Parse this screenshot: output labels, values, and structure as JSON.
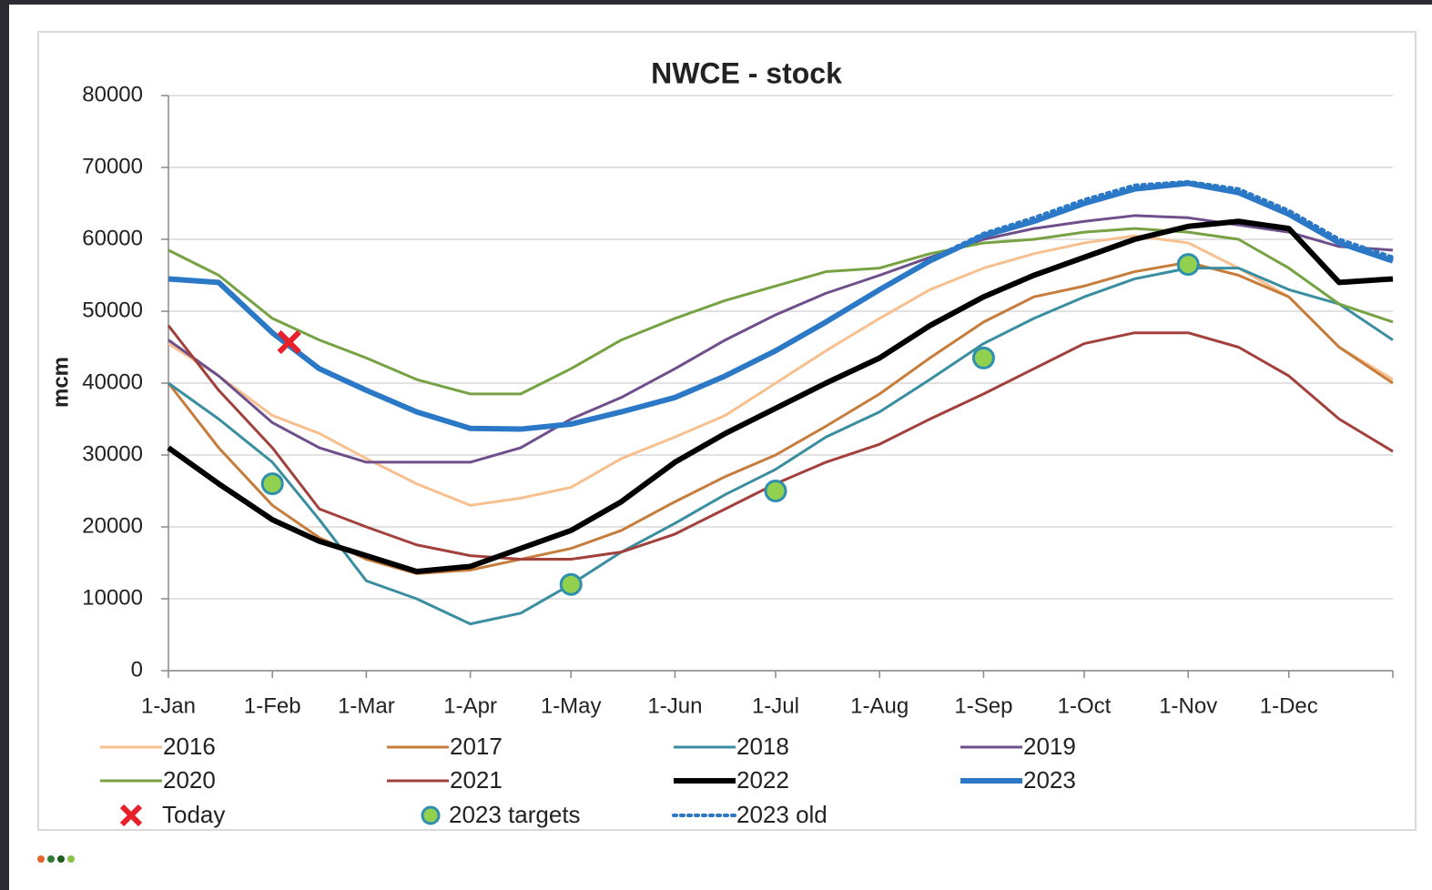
{
  "chart_data": {
    "type": "line",
    "title": "NWCE - stock",
    "y_label": "mcm",
    "x": [
      0,
      15,
      31,
      45,
      59,
      74,
      90,
      105,
      120,
      135,
      151,
      166,
      181,
      196,
      212,
      227,
      243,
      258,
      273,
      288,
      304,
      319,
      334,
      349,
      365
    ],
    "xlim": [
      0,
      365
    ],
    "xticks": [
      {
        "value": 0,
        "label": "1-Jan"
      },
      {
        "value": 31,
        "label": "1-Feb"
      },
      {
        "value": 59,
        "label": "1-Mar"
      },
      {
        "value": 90,
        "label": "1-Apr"
      },
      {
        "value": 120,
        "label": "1-May"
      },
      {
        "value": 151,
        "label": "1-Jun"
      },
      {
        "value": 181,
        "label": "1-Jul"
      },
      {
        "value": 212,
        "label": "1-Aug"
      },
      {
        "value": 243,
        "label": "1-Sep"
      },
      {
        "value": 273,
        "label": "1-Oct"
      },
      {
        "value": 304,
        "label": "1-Nov"
      },
      {
        "value": 334,
        "label": "1-Dec"
      }
    ],
    "ylim": [
      0,
      80000
    ],
    "yticks": [
      0,
      10000,
      20000,
      30000,
      40000,
      50000,
      60000,
      70000,
      80000
    ],
    "grid": true,
    "legend": "bottom",
    "series": [
      {
        "name": "2016",
        "color": "#f7c08e",
        "style": "line",
        "width": 3,
        "values": [
          45500,
          41000,
          35500,
          33000,
          29500,
          26000,
          23000,
          24000,
          25500,
          29500,
          32500,
          35500,
          40000,
          44500,
          49000,
          53000,
          56000,
          58000,
          59500,
          60500,
          59500,
          56000,
          52000,
          45000,
          40500
        ]
      },
      {
        "name": "2017",
        "color": "#c67c3a",
        "style": "line",
        "width": 3,
        "values": [
          40000,
          31000,
          23000,
          18500,
          15500,
          13500,
          14000,
          15500,
          17000,
          19500,
          23500,
          27000,
          30000,
          34000,
          38500,
          43500,
          48500,
          52000,
          53500,
          55500,
          56800,
          55000,
          52000,
          45000,
          40000
        ]
      },
      {
        "name": "2018",
        "color": "#3a8ea0",
        "style": "line",
        "width": 3,
        "values": [
          40000,
          35000,
          29000,
          21000,
          12500,
          10000,
          6500,
          8000,
          12000,
          16500,
          20500,
          24500,
          28000,
          32500,
          36000,
          40500,
          45500,
          49000,
          52000,
          54500,
          56000,
          56000,
          53000,
          51000,
          46000
        ]
      },
      {
        "name": "2019",
        "color": "#6e4f8c",
        "style": "line",
        "width": 3,
        "values": [
          46000,
          41000,
          34500,
          31000,
          29000,
          29000,
          29000,
          31000,
          35000,
          38000,
          42000,
          46000,
          49500,
          52500,
          55000,
          57500,
          60000,
          61500,
          62500,
          63300,
          63000,
          62000,
          61000,
          59000,
          58500
        ]
      },
      {
        "name": "2020",
        "color": "#76a243",
        "style": "line",
        "width": 3,
        "values": [
          58500,
          55000,
          49000,
          46000,
          43500,
          40500,
          38500,
          38500,
          42000,
          46000,
          49000,
          51500,
          53500,
          55500,
          56000,
          58000,
          59500,
          60000,
          61000,
          61500,
          61000,
          60000,
          56000,
          51000,
          48500
        ]
      },
      {
        "name": "2021",
        "color": "#a2403b",
        "style": "line",
        "width": 3,
        "values": [
          48000,
          39000,
          31000,
          22500,
          20000,
          17500,
          16000,
          15500,
          15500,
          16500,
          19000,
          22500,
          26000,
          29000,
          31500,
          35000,
          38500,
          42000,
          45500,
          47000,
          47000,
          45000,
          41000,
          35000,
          30500
        ]
      },
      {
        "name": "2022",
        "color": "#000000",
        "style": "line",
        "width": 6,
        "values": [
          31000,
          26000,
          21000,
          18000,
          16000,
          13800,
          14500,
          17000,
          19500,
          23500,
          29000,
          33000,
          36500,
          40000,
          43500,
          48000,
          52000,
          55000,
          57500,
          60000,
          61800,
          62500,
          61500,
          54000,
          54500
        ]
      },
      {
        "name": "2023",
        "color": "#2a78c6",
        "style": "line",
        "width": 6,
        "values": [
          54500,
          54000,
          47000,
          42000,
          39000,
          36000,
          33700,
          33600,
          34300,
          36000,
          38000,
          41000,
          44500,
          48500,
          53000,
          57000,
          60500,
          62500,
          65000,
          67000,
          67800,
          66500,
          63500,
          59500,
          57000
        ]
      },
      {
        "name": "Today",
        "color": "#e8202a",
        "style": "cross",
        "x": [
          36
        ],
        "values": [
          45700
        ]
      },
      {
        "name": "2023 targets",
        "color": "#92d050",
        "edge": "#2f8fae",
        "style": "circle",
        "x": [
          31,
          120,
          181,
          243,
          304
        ],
        "values": [
          26000,
          12000,
          25000,
          43500,
          56500
        ]
      },
      {
        "name": "2023 old",
        "color": "#2a78c6",
        "style": "dotted",
        "width": 4,
        "values": [
          null,
          null,
          null,
          null,
          null,
          null,
          null,
          null,
          null,
          null,
          null,
          null,
          null,
          null,
          null,
          57200,
          60800,
          63000,
          65500,
          67500,
          68000,
          67000,
          64000,
          60000,
          57500
        ]
      }
    ]
  }
}
